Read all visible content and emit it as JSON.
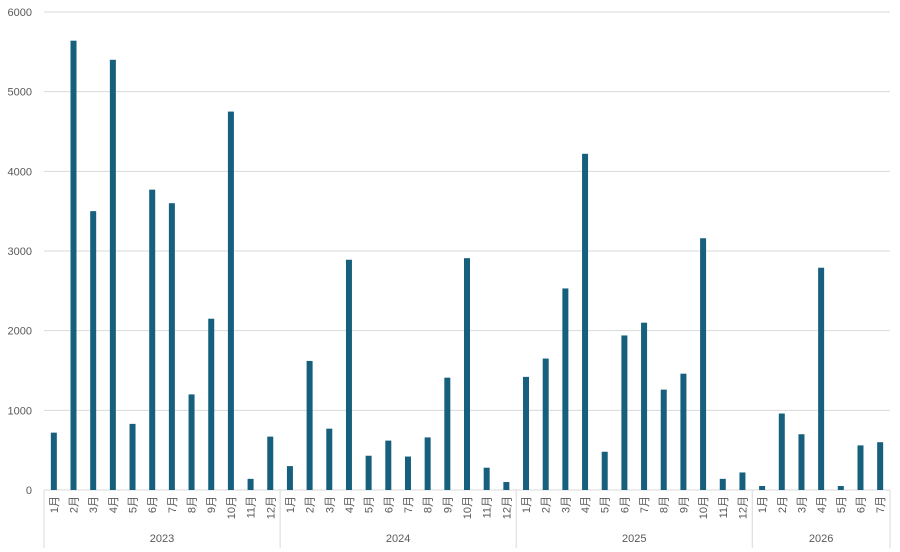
{
  "chart_data": {
    "type": "bar",
    "title": "",
    "xlabel": "",
    "ylabel": "",
    "ylim": [
      0,
      6000
    ],
    "yticks": [
      0,
      1000,
      2000,
      3000,
      4000,
      5000,
      6000
    ],
    "grid": true,
    "color": "#17607d",
    "groups": [
      {
        "year": "2023",
        "months": [
          "1月",
          "2月",
          "3月",
          "4月",
          "5月",
          "6月",
          "7月",
          "8月",
          "9月",
          "10月",
          "11月",
          "12月"
        ],
        "values": [
          720,
          5640,
          3500,
          5400,
          830,
          3770,
          3600,
          1200,
          2150,
          4750,
          140,
          670
        ]
      },
      {
        "year": "2024",
        "months": [
          "1月",
          "2月",
          "3月",
          "4月",
          "5月",
          "6月",
          "7月",
          "8月",
          "9月",
          "10月",
          "11月",
          "12月"
        ],
        "values": [
          300,
          1620,
          770,
          2890,
          430,
          620,
          420,
          660,
          1410,
          2910,
          280,
          100
        ]
      },
      {
        "year": "2025",
        "months": [
          "1月",
          "2月",
          "3月",
          "4月",
          "5月",
          "6月",
          "7月",
          "8月",
          "9月",
          "10月",
          "11月",
          "12月"
        ],
        "values": [
          1420,
          1650,
          2530,
          4220,
          480,
          1940,
          2100,
          1260,
          1460,
          3160,
          140,
          220
        ]
      },
      {
        "year": "2026",
        "months": [
          "1月",
          "2月",
          "3月",
          "4月",
          "5月",
          "6月",
          "7月"
        ],
        "values": [
          50,
          960,
          700,
          2790,
          50,
          560,
          600
        ]
      }
    ]
  }
}
